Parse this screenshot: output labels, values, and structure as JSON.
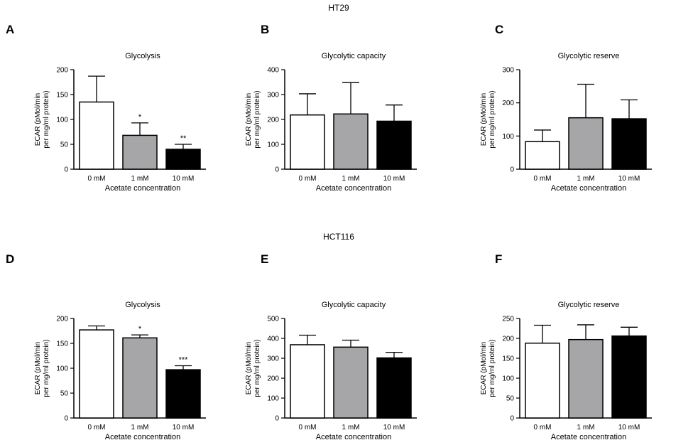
{
  "figure": {
    "sections": [
      "HT29",
      "HCT116"
    ],
    "panel_letters": [
      "A",
      "B",
      "C",
      "D",
      "E",
      "F"
    ]
  },
  "colors": {
    "control": "#ffffff",
    "low": "#a6a6a8",
    "high": "#000000",
    "axis": "#000000"
  },
  "chart_data": [
    {
      "type": "bar",
      "section": "HT29",
      "letter": "A",
      "title": "Glycolysis",
      "xlabel": "Acetate concentration",
      "ylabel": [
        "ECAR (pMol/min",
        "per mg/ml protein)"
      ],
      "categories": [
        "0 mM",
        "1 mM",
        "10 mM"
      ],
      "values": [
        135,
        68,
        40
      ],
      "errors": [
        52,
        25,
        10
      ],
      "significance": [
        "",
        "*",
        "**"
      ],
      "ylim": [
        0,
        200
      ],
      "yticks": [
        0,
        50,
        100,
        150,
        200
      ]
    },
    {
      "type": "bar",
      "section": "HT29",
      "letter": "B",
      "title": "Glycolytic capacity",
      "xlabel": "Acetate concentration",
      "ylabel": [
        "ECAR (pMol/min",
        "per mg/ml protein)"
      ],
      "categories": [
        "0 mM",
        "1 mM",
        "10 mM"
      ],
      "values": [
        218,
        222,
        193
      ],
      "errors": [
        85,
        126,
        65
      ],
      "significance": [
        "",
        "",
        ""
      ],
      "ylim": [
        0,
        400
      ],
      "yticks": [
        0,
        100,
        200,
        300,
        400
      ]
    },
    {
      "type": "bar",
      "section": "HT29",
      "letter": "C",
      "title": "Glycolytic reserve",
      "xlabel": "Acetate concentration",
      "ylabel": [
        "ECAR (pMol/min",
        "per mg/ml protein)"
      ],
      "categories": [
        "0 mM",
        "1 mM",
        "10 mM"
      ],
      "values": [
        83,
        155,
        152
      ],
      "errors": [
        35,
        101,
        57
      ],
      "significance": [
        "",
        "",
        ""
      ],
      "ylim": [
        0,
        300
      ],
      "yticks": [
        0,
        100,
        200,
        300
      ]
    },
    {
      "type": "bar",
      "section": "HCT116",
      "letter": "D",
      "title": "Glycolysis",
      "xlabel": "Acetate concentration",
      "ylabel": [
        "ECAR (pMol/min",
        "per mg/ml protein)"
      ],
      "categories": [
        "0 mM",
        "1 mM",
        "10 mM"
      ],
      "values": [
        177,
        161,
        97
      ],
      "errors": [
        8,
        6,
        8
      ],
      "significance": [
        "",
        "*",
        "***"
      ],
      "ylim": [
        0,
        200
      ],
      "yticks": [
        0,
        50,
        100,
        150,
        200
      ]
    },
    {
      "type": "bar",
      "section": "HCT116",
      "letter": "E",
      "title": "Glycolytic capacity",
      "xlabel": "Acetate concentration",
      "ylabel": [
        "ECAR (pMol/min",
        "per mg/ml protein)"
      ],
      "categories": [
        "0 mM",
        "1 mM",
        "10 mM"
      ],
      "values": [
        368,
        356,
        302
      ],
      "errors": [
        48,
        35,
        28
      ],
      "significance": [
        "",
        "",
        ""
      ],
      "ylim": [
        0,
        500
      ],
      "yticks": [
        0,
        100,
        200,
        300,
        400,
        500
      ]
    },
    {
      "type": "bar",
      "section": "HCT116",
      "letter": "F",
      "title": "Glycolytic reserve",
      "xlabel": "Acetate concentration",
      "ylabel": [
        "ECAR (pMol/min",
        "per mg/ml protein)"
      ],
      "categories": [
        "0 mM",
        "1 mM",
        "10 mM"
      ],
      "values": [
        188,
        197,
        206
      ],
      "errors": [
        45,
        37,
        22
      ],
      "significance": [
        "",
        "",
        ""
      ],
      "ylim": [
        0,
        250
      ],
      "yticks": [
        0,
        50,
        100,
        150,
        200,
        250
      ]
    }
  ]
}
